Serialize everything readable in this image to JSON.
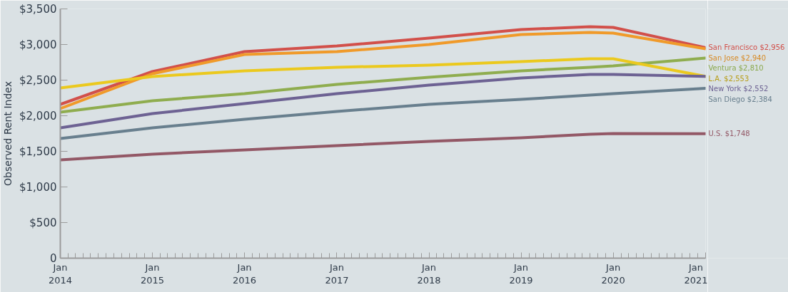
{
  "chart_data": {
    "type": "line",
    "ylabel": "Observed Rent Index",
    "x": [
      "2014-01",
      "2015-01",
      "2016-01",
      "2017-01",
      "2018-01",
      "2019-01",
      "2019-10",
      "2020-01",
      "2021-01"
    ],
    "xlim": [
      "2014-01",
      "2021-01"
    ],
    "xticks": [
      {
        "value": "2014-01",
        "label": "Jan\n2014"
      },
      {
        "value": "2015-01",
        "label": "Jan\n2015"
      },
      {
        "value": "2016-01",
        "label": "Jan\n2016"
      },
      {
        "value": "2017-01",
        "label": "Jan\n2017"
      },
      {
        "value": "2018-01",
        "label": "Jan\n2018"
      },
      {
        "value": "2019-01",
        "label": "Jan\n2019"
      },
      {
        "value": "2020-01",
        "label": "Jan\n2020"
      },
      {
        "value": "2021-01",
        "label": "Jan\n2021"
      }
    ],
    "ylim": [
      0,
      3500
    ],
    "yticks": [
      {
        "value": 0,
        "label": "0"
      },
      {
        "value": 500,
        "label": "$500"
      },
      {
        "value": 1000,
        "label": "$1,000"
      },
      {
        "value": 1500,
        "label": "$1,500"
      },
      {
        "value": 2000,
        "label": "$2,000"
      },
      {
        "value": 2500,
        "label": "$2,500"
      },
      {
        "value": 3000,
        "label": "$3,000"
      },
      {
        "value": 3500,
        "label": "$3,500"
      }
    ],
    "grid": false,
    "legend": false,
    "marker": "none",
    "line_style": "solid",
    "series": [
      {
        "name": "San Francisco",
        "color": "#d2504a",
        "values": [
          2160,
          2620,
          2900,
          2980,
          3090,
          3210,
          3250,
          3240,
          2956
        ],
        "value_labels": [
          null,
          null,
          null,
          null,
          null,
          null,
          null,
          null,
          "$2,956"
        ]
      },
      {
        "name": "San Jose",
        "color": "#f09a2a",
        "values": [
          2100,
          2590,
          2860,
          2900,
          3000,
          3140,
          3170,
          3160,
          2940
        ],
        "value_labels": [
          null,
          null,
          null,
          null,
          null,
          null,
          null,
          null,
          "$2,940"
        ]
      },
      {
        "name": "Ventura",
        "color": "#8fad4f",
        "values": [
          2050,
          2210,
          2310,
          2440,
          2540,
          2630,
          2680,
          2700,
          2810
        ],
        "value_labels": [
          null,
          null,
          null,
          null,
          null,
          null,
          null,
          null,
          "$2,810"
        ]
      },
      {
        "name": "L.A.",
        "color": "#ebc91e",
        "values": [
          2390,
          2550,
          2630,
          2680,
          2710,
          2760,
          2800,
          2800,
          2553
        ],
        "value_labels": [
          null,
          null,
          null,
          null,
          null,
          null,
          null,
          null,
          "$2,553"
        ]
      },
      {
        "name": "New York",
        "color": "#6d6293",
        "values": [
          1830,
          2030,
          2170,
          2310,
          2430,
          2530,
          2580,
          2580,
          2552
        ],
        "value_labels": [
          null,
          null,
          null,
          null,
          null,
          null,
          null,
          null,
          "$2,552"
        ]
      },
      {
        "name": "San Diego",
        "color": "#687f8e",
        "values": [
          1680,
          1830,
          1950,
          2060,
          2160,
          2230,
          2290,
          2310,
          2384
        ],
        "value_labels": [
          null,
          null,
          null,
          null,
          null,
          null,
          null,
          null,
          "$2,384"
        ]
      },
      {
        "name": "U.S.",
        "color": "#935866",
        "values": [
          1380,
          1460,
          1520,
          1580,
          1640,
          1690,
          1740,
          1750,
          1748
        ],
        "value_labels": [
          null,
          null,
          null,
          null,
          null,
          null,
          null,
          null,
          "$1,748"
        ]
      }
    ]
  }
}
